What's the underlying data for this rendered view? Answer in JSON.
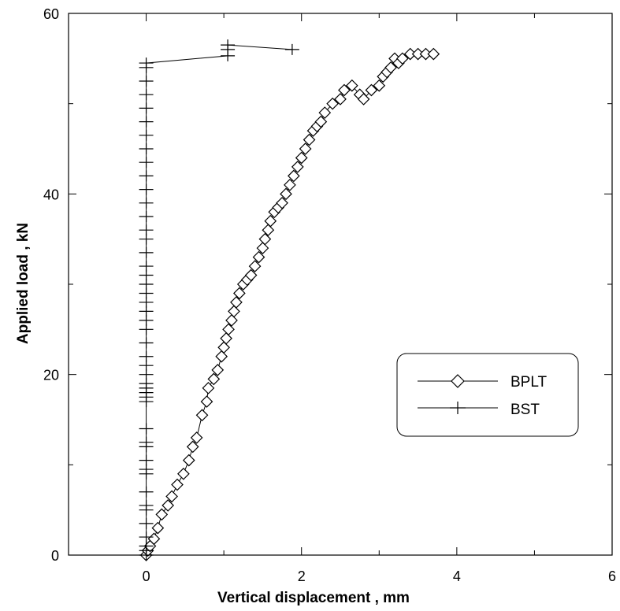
{
  "chart_data": {
    "type": "scatter",
    "title": "",
    "xlabel": "Vertical displacement , mm",
    "ylabel": "Applied load , kN",
    "xlim": [
      -1,
      6
    ],
    "ylim": [
      0,
      60
    ],
    "x_ticks": [
      0,
      2,
      4,
      6
    ],
    "y_ticks": [
      0,
      20,
      40,
      60
    ],
    "x_tick_labels": [
      "0",
      "2",
      "4",
      "6"
    ],
    "y_tick_labels": [
      "0",
      "20",
      "40",
      "60"
    ],
    "grid": false,
    "legend_position": "right-middle",
    "series": [
      {
        "name": "BPLT",
        "marker": "diamond",
        "line": true,
        "color": "#000000",
        "x": [
          0,
          0.02,
          0.05,
          0.1,
          0.15,
          0.2,
          0.28,
          0.33,
          0.4,
          0.48,
          0.55,
          0.6,
          0.65,
          0.72,
          0.78,
          0.8,
          0.87,
          0.92,
          0.97,
          1.0,
          1.03,
          1.06,
          1.1,
          1.13,
          1.16,
          1.2,
          1.25,
          1.3,
          1.35,
          1.4,
          1.45,
          1.5,
          1.53,
          1.57,
          1.6,
          1.65,
          1.7,
          1.75,
          1.8,
          1.85,
          1.9,
          1.95,
          2.0,
          2.05,
          2.1,
          2.15,
          2.2,
          2.25,
          2.3,
          2.4,
          2.5,
          2.55,
          2.65,
          2.75,
          2.8,
          2.9,
          3.0,
          3.05,
          3.1,
          3.15,
          3.2,
          3.25,
          3.3,
          3.4,
          3.5,
          3.6,
          3.7
        ],
        "y": [
          0,
          0.5,
          1.0,
          1.8,
          3.0,
          4.5,
          5.5,
          6.5,
          7.8,
          9.0,
          10.5,
          12.0,
          13.0,
          15.5,
          17.0,
          18.5,
          19.5,
          20.5,
          22.0,
          23.0,
          24.0,
          25.0,
          26.0,
          27.0,
          28.0,
          29.0,
          30.0,
          30.5,
          31.0,
          32.0,
          33.0,
          34.0,
          35.0,
          36.0,
          37.0,
          38.0,
          38.5,
          39.0,
          40.0,
          41.0,
          42.0,
          43.0,
          44.0,
          45.0,
          46.0,
          47.0,
          47.5,
          48.0,
          49.0,
          50.0,
          50.5,
          51.5,
          52.0,
          51.0,
          50.5,
          51.5,
          52.0,
          53.0,
          53.5,
          54.0,
          55.0,
          54.5,
          55.0,
          55.5,
          55.5,
          55.5,
          55.5
        ]
      },
      {
        "name": "BST",
        "marker": "plus",
        "line": true,
        "color": "#000000",
        "x": [
          0,
          0,
          0,
          0,
          0,
          0,
          0,
          0,
          0,
          0,
          0,
          0,
          0,
          0,
          0,
          0,
          0,
          0,
          0,
          0,
          0,
          0,
          0,
          0,
          0,
          0,
          0,
          0,
          0,
          0,
          0,
          0,
          0,
          0,
          0,
          0,
          0,
          0,
          0,
          0,
          0,
          0,
          0,
          0,
          0,
          0,
          0,
          1.05,
          1.05,
          1.05,
          1.88
        ],
        "y": [
          0,
          0.5,
          1.0,
          2.0,
          3.5,
          5.0,
          5.5,
          7.0,
          9.0,
          9.5,
          10.5,
          12.0,
          12.5,
          14.0,
          17.0,
          17.5,
          18.0,
          18.5,
          19.0,
          20.0,
          21.0,
          22.0,
          23.5,
          25.0,
          26.0,
          27.0,
          28.0,
          29.0,
          30.0,
          31.0,
          32.0,
          33.5,
          35.0,
          36.0,
          37.5,
          39.0,
          40.5,
          42.0,
          43.5,
          45.0,
          46.5,
          48.0,
          49.5,
          51.0,
          52.5,
          54.0,
          54.5,
          55.3,
          56.0,
          56.5,
          56.0
        ]
      }
    ]
  }
}
